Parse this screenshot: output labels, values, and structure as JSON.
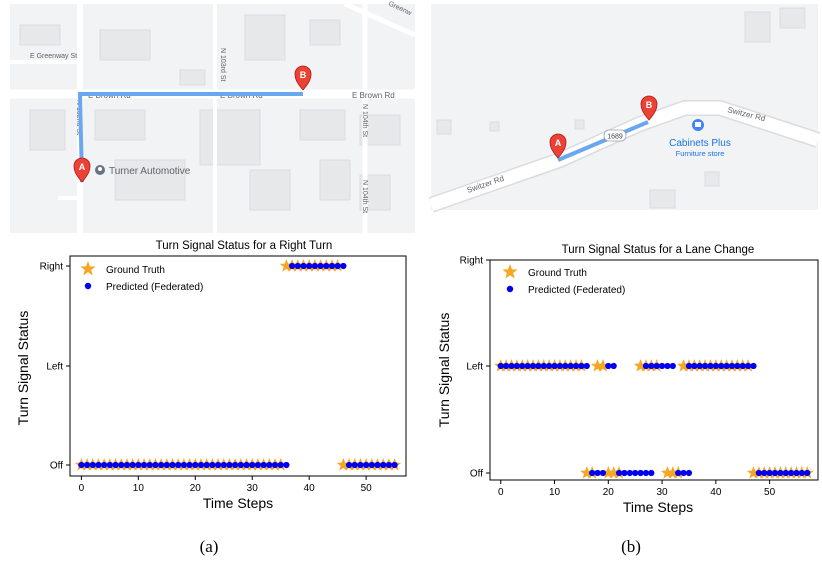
{
  "maps": {
    "a": {
      "streets": [
        "E Greenway St",
        "E Brown Rd",
        "E Brown Rd",
        "E Brown Rd",
        "N 102nd St",
        "N 103rd St",
        "N 104th St",
        "N 104th St",
        "Greenw"
      ],
      "place": "Turner Automotive",
      "marker_start": "A",
      "marker_end": "B",
      "route_color": "#6aa7ee"
    },
    "b": {
      "streets": [
        "Switzer Rd",
        "Switzer Rd"
      ],
      "route_badge": "1689",
      "place_name": "Cabinets Plus",
      "place_type": "Furniture store",
      "marker_start": "A",
      "marker_end": "B",
      "route_color": "#6aa7ee"
    }
  },
  "chart_data": [
    {
      "type": "scatter",
      "title": "Turn Signal Status for a Right Turn",
      "xlabel": "Time Steps",
      "ylabel": "Turn Signal Status",
      "xlim": [
        -2,
        57
      ],
      "xticks": [
        0,
        10,
        20,
        30,
        40,
        50
      ],
      "yticks": [
        "Off",
        "Left",
        "Right"
      ],
      "legend_position": "top-left",
      "caption": "(a)",
      "series": [
        {
          "name": "Ground Truth",
          "marker": "star",
          "color": "#f5a623",
          "points": [
            {
              "x_range": [
                0,
                35
              ],
              "y": "Off"
            },
            {
              "x_range": [
                36,
                45
              ],
              "y": "Right"
            },
            {
              "x_range": [
                46,
                55
              ],
              "y": "Off"
            }
          ]
        },
        {
          "name": "Predicted (Federated)",
          "marker": "circle",
          "color": "#0000ee",
          "points": [
            {
              "x_range": [
                0,
                36
              ],
              "y": "Off"
            },
            {
              "x_range": [
                37,
                46
              ],
              "y": "Right"
            },
            {
              "x_range": [
                47,
                55
              ],
              "y": "Off"
            }
          ]
        }
      ]
    },
    {
      "type": "scatter",
      "title": "Turn Signal Status for a Lane Change",
      "xlabel": "Time Steps",
      "ylabel": "Turn Signal Status",
      "xlim": [
        -2,
        59
      ],
      "xticks": [
        0,
        10,
        20,
        30,
        40,
        50
      ],
      "yticks": [
        "Off",
        "Left",
        "Right"
      ],
      "legend_position": "top-left",
      "caption": "(b)",
      "series": [
        {
          "name": "Ground Truth",
          "marker": "star",
          "color": "#f5a623",
          "points": [
            {
              "x_range": [
                0,
                15
              ],
              "y": "Left"
            },
            {
              "x_range": [
                16,
                17
              ],
              "y": "Off"
            },
            {
              "x_range": [
                18,
                19
              ],
              "y": "Left"
            },
            {
              "x_range": [
                20,
                22
              ],
              "y": "Off"
            },
            {
              "x_range": [
                26,
                29
              ],
              "y": "Left"
            },
            {
              "x_range": [
                31,
                33
              ],
              "y": "Off"
            },
            {
              "x_range": [
                34,
                46
              ],
              "y": "Left"
            },
            {
              "x_range": [
                47,
                57
              ],
              "y": "Off"
            }
          ]
        },
        {
          "name": "Predicted (Federated)",
          "marker": "circle",
          "color": "#0000ee",
          "points": [
            {
              "x_range": [
                0,
                16
              ],
              "y": "Left"
            },
            {
              "x_range": [
                17,
                19
              ],
              "y": "Off"
            },
            {
              "x_range": [
                20,
                21
              ],
              "y": "Left"
            },
            {
              "x_range": [
                22,
                28
              ],
              "y": "Off"
            },
            {
              "x_range": [
                27,
                32
              ],
              "y": "Left"
            },
            {
              "x_range": [
                33,
                35
              ],
              "y": "Off"
            },
            {
              "x_range": [
                35,
                47
              ],
              "y": "Left"
            },
            {
              "x_range": [
                48,
                57
              ],
              "y": "Off"
            }
          ]
        }
      ]
    }
  ]
}
